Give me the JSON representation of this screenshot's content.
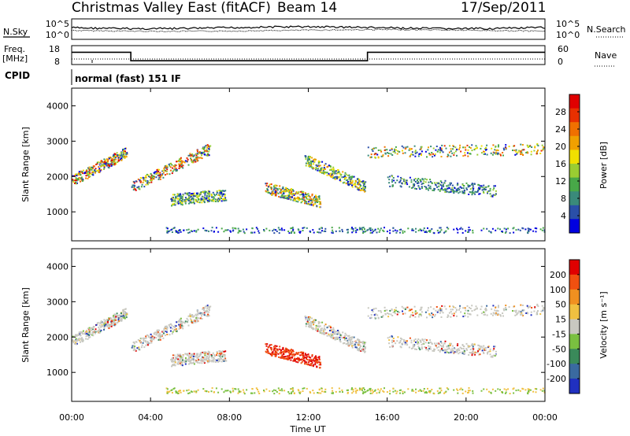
{
  "header": {
    "station": "Christmas Valley East (fitACF)",
    "beam": "Beam 14",
    "date": "17/Sep/2011"
  },
  "noise_panel": {
    "left_label": "N.Sky",
    "left_ticks": [
      "10^5",
      "10^0"
    ],
    "right_label": "N.Search",
    "right_ticks": [
      "10^5",
      "10^0"
    ]
  },
  "freq_panel": {
    "left_label_1": "Freq.",
    "left_label_2": "[MHz]",
    "left_ticks": [
      "18",
      "8"
    ],
    "right_label": "Nave",
    "right_ticks": [
      "60",
      "0"
    ],
    "cpid_label": "CPID",
    "mode_text": "normal (fast) 151 IF"
  },
  "x_axis": {
    "label": "Time UT",
    "ticks": [
      "00:00",
      "04:00",
      "08:00",
      "12:00",
      "16:00",
      "20:00",
      "00:00"
    ]
  },
  "power_panel": {
    "ylabel": "Slant Range [km]",
    "yticks": [
      "1000",
      "2000",
      "3000",
      "4000"
    ],
    "colorbar_label": "Power [dB]",
    "colorbar_ticks": [
      "4",
      "8",
      "12",
      "16",
      "20",
      "24",
      "28"
    ],
    "colors": [
      "#0000e0",
      "#2a4fa8",
      "#3a8a7a",
      "#48a848",
      "#9acd32",
      "#f0e000",
      "#f0a000",
      "#f07000",
      "#e83000",
      "#e00000"
    ]
  },
  "velocity_panel": {
    "ylabel": "Slant Range [km]",
    "yticks": [
      "1000",
      "2000",
      "3000",
      "4000"
    ],
    "colorbar_label": "Velocity [m s⁻¹]",
    "colorbar_ticks": [
      "200",
      "100",
      "50",
      "15",
      "-15",
      "-50",
      "-100",
      "-200"
    ],
    "colors": [
      "#2030c0",
      "#3a6aa0",
      "#3a8a5a",
      "#7ac040",
      "#c8c8c0",
      "#f0c040",
      "#f09020",
      "#f05010",
      "#e00000"
    ]
  },
  "chart_data": {
    "type": "heatmap",
    "x_range_hours": [
      0,
      24
    ],
    "y_range_km": [
      180,
      4500
    ],
    "frequency_steps": [
      {
        "from": "00:00",
        "to": "03:00",
        "freq_mhz": 15
      },
      {
        "from": "03:00",
        "to": "15:00",
        "freq_mhz": 9
      },
      {
        "from": "15:00",
        "to": "24:00",
        "freq_mhz": 15
      }
    ],
    "echo_bands": [
      {
        "start_h": 0.0,
        "end_h": 2.8,
        "range_km_start": 1900,
        "range_km_end": 2700,
        "max_power_db": 28
      },
      {
        "start_h": 3.0,
        "end_h": 7.0,
        "range_km_start": 1700,
        "range_km_end": 2800,
        "max_power_db": 28
      },
      {
        "start_h": 5.0,
        "end_h": 7.8,
        "range_km_start": 1350,
        "range_km_end": 1500,
        "max_power_db": 16
      },
      {
        "start_h": 9.8,
        "end_h": 12.6,
        "range_km_start": 1700,
        "range_km_end": 1300,
        "max_power_db": 24
      },
      {
        "start_h": 11.8,
        "end_h": 14.9,
        "range_km_start": 2500,
        "range_km_end": 1700,
        "max_power_db": 20
      },
      {
        "start_h": 15.0,
        "end_h": 24.0,
        "range_km_start": 2700,
        "range_km_end": 2800,
        "max_power_db": 24
      },
      {
        "start_h": 16.0,
        "end_h": 21.5,
        "range_km_start": 1900,
        "range_km_end": 1600,
        "max_power_db": 12
      }
    ]
  }
}
